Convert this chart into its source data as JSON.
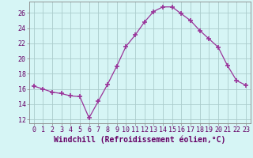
{
  "x": [
    0,
    1,
    2,
    3,
    4,
    5,
    6,
    7,
    8,
    9,
    10,
    11,
    12,
    13,
    14,
    15,
    16,
    17,
    18,
    19,
    20,
    21,
    22,
    23
  ],
  "y": [
    16.4,
    16.0,
    15.6,
    15.4,
    15.1,
    15.0,
    12.2,
    14.4,
    16.6,
    19.0,
    21.6,
    23.1,
    24.8,
    26.2,
    26.8,
    26.8,
    25.9,
    25.0,
    23.7,
    22.6,
    21.5,
    19.1,
    17.1,
    16.5
  ],
  "line_color": "#993399",
  "marker": "+",
  "marker_size": 4,
  "marker_lw": 1.2,
  "bg_color": "#d6f5f5",
  "grid_color": "#aacccc",
  "xlabel": "Windchill (Refroidissement éolien,°C)",
  "ylim": [
    11.5,
    27.5
  ],
  "xlim": [
    -0.5,
    23.5
  ],
  "yticks": [
    12,
    14,
    16,
    18,
    20,
    22,
    24,
    26
  ],
  "xticks": [
    0,
    1,
    2,
    3,
    4,
    5,
    6,
    7,
    8,
    9,
    10,
    11,
    12,
    13,
    14,
    15,
    16,
    17,
    18,
    19,
    20,
    21,
    22,
    23
  ],
  "tick_fontsize": 6,
  "label_fontsize": 7,
  "spine_color": "#888888",
  "text_color": "#660066"
}
